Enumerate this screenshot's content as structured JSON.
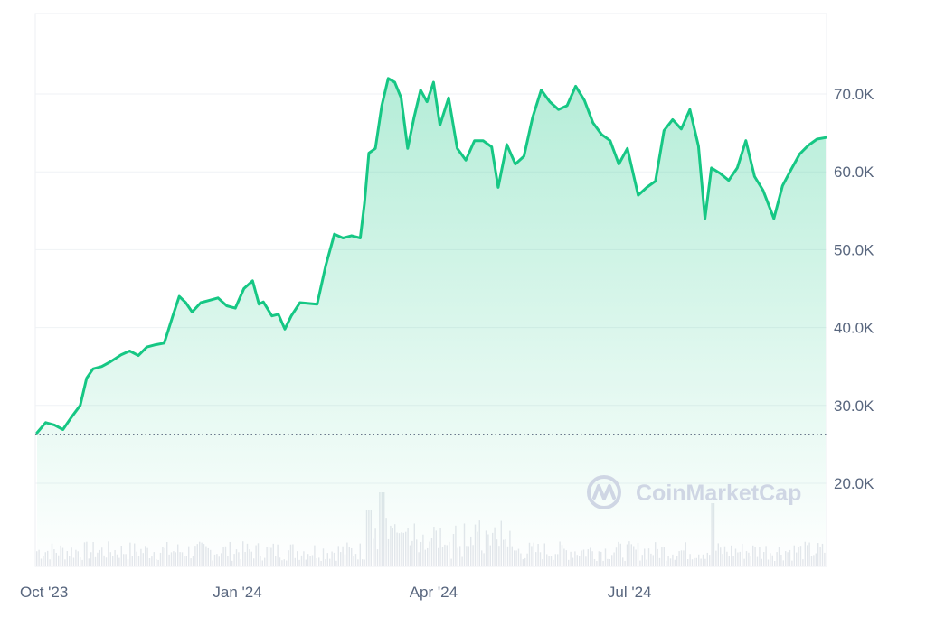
{
  "watermark": {
    "text": "CoinMarketCap"
  },
  "colors": {
    "line": "#16c784",
    "area_top": "#16c784",
    "grid": "#eff2f5",
    "baseline": "#58667e",
    "volume": "#e4e7ec",
    "tick_text": "#58667e",
    "watermark": "#cfd6e4"
  },
  "chart_data": {
    "type": "area",
    "title": "",
    "xlabel": "",
    "ylabel": "",
    "ylim": [
      10000,
      80000
    ],
    "grid": true,
    "legend": "none",
    "y_ticks": [
      {
        "value": 70000,
        "label": "70.0K"
      },
      {
        "value": 60000,
        "label": "60.0K"
      },
      {
        "value": 50000,
        "label": "50.0K"
      },
      {
        "value": 40000,
        "label": "40.0K"
      },
      {
        "value": 30000,
        "label": "30.0K"
      },
      {
        "value": 20000,
        "label": "20.0K"
      }
    ],
    "x_ticks": [
      {
        "date": "2023-10-01",
        "label": "Oct '23"
      },
      {
        "date": "2024-01-01",
        "label": "Jan '24"
      },
      {
        "date": "2024-04-01",
        "label": "Apr '24"
      },
      {
        "date": "2024-07-01",
        "label": "Jul '24"
      }
    ],
    "baseline_value": 26300,
    "series": [
      {
        "x": [
          "2023-09-30",
          "2023-10-04",
          "2023-10-08",
          "2023-10-12",
          "2023-10-16",
          "2023-10-20",
          "2023-10-23",
          "2023-10-26",
          "2023-10-30",
          "2023-11-03",
          "2023-11-08",
          "2023-11-12",
          "2023-11-16",
          "2023-11-20",
          "2023-11-24",
          "2023-11-28",
          "2023-12-02",
          "2023-12-05",
          "2023-12-08",
          "2023-12-11",
          "2023-12-15",
          "2023-12-19",
          "2023-12-23",
          "2023-12-27",
          "2023-12-31",
          "2024-01-04",
          "2024-01-08",
          "2024-01-11",
          "2024-01-13",
          "2024-01-17",
          "2024-01-20",
          "2024-01-23",
          "2024-01-26",
          "2024-01-30",
          "2024-02-03",
          "2024-02-07",
          "2024-02-11",
          "2024-02-15",
          "2024-02-19",
          "2024-02-23",
          "2024-02-27",
          "2024-02-29",
          "2024-03-02",
          "2024-03-05",
          "2024-03-08",
          "2024-03-11",
          "2024-03-14",
          "2024-03-17",
          "2024-03-20",
          "2024-03-23",
          "2024-03-26",
          "2024-03-29",
          "2024-04-01",
          "2024-04-04",
          "2024-04-08",
          "2024-04-12",
          "2024-04-16",
          "2024-04-20",
          "2024-04-24",
          "2024-04-28",
          "2024-05-01",
          "2024-05-05",
          "2024-05-09",
          "2024-05-13",
          "2024-05-17",
          "2024-05-21",
          "2024-05-25",
          "2024-05-29",
          "2024-06-02",
          "2024-06-06",
          "2024-06-10",
          "2024-06-14",
          "2024-06-18",
          "2024-06-22",
          "2024-06-26",
          "2024-06-30",
          "2024-07-05",
          "2024-07-09",
          "2024-07-13",
          "2024-07-17",
          "2024-07-21",
          "2024-07-25",
          "2024-07-29",
          "2024-08-02",
          "2024-08-05",
          "2024-08-08",
          "2024-08-12",
          "2024-08-16",
          "2024-08-20",
          "2024-08-24",
          "2024-08-28",
          "2024-09-01",
          "2024-09-06",
          "2024-09-10",
          "2024-09-14",
          "2024-09-18",
          "2024-09-22",
          "2024-09-26",
          "2024-09-30"
        ],
        "values": [
          26500,
          27800,
          27500,
          26900,
          28500,
          30000,
          33500,
          34700,
          35000,
          35600,
          36500,
          37000,
          36400,
          37500,
          37800,
          38000,
          41500,
          44000,
          43200,
          42000,
          43200,
          43500,
          43800,
          42800,
          42500,
          45000,
          46000,
          43000,
          43300,
          41500,
          41700,
          39800,
          41500,
          43200,
          43100,
          43000,
          48000,
          52000,
          51500,
          51800,
          51500,
          56000,
          62400,
          63000,
          68500,
          72000,
          71500,
          69500,
          63000,
          67000,
          70500,
          69000,
          71500,
          66000,
          69500,
          63000,
          61500,
          64000,
          64000,
          63200,
          58000,
          63500,
          61000,
          62000,
          67000,
          70500,
          69000,
          68000,
          68500,
          71000,
          69200,
          66300,
          64800,
          64000,
          61000,
          63000,
          57000,
          58000,
          58800,
          65300,
          66700,
          65500,
          68000,
          63300,
          54000,
          60500,
          59800,
          58900,
          60500,
          64000,
          59400,
          57600,
          54000,
          58200,
          60300,
          62300,
          63400,
          64200,
          64400
        ]
      }
    ]
  }
}
